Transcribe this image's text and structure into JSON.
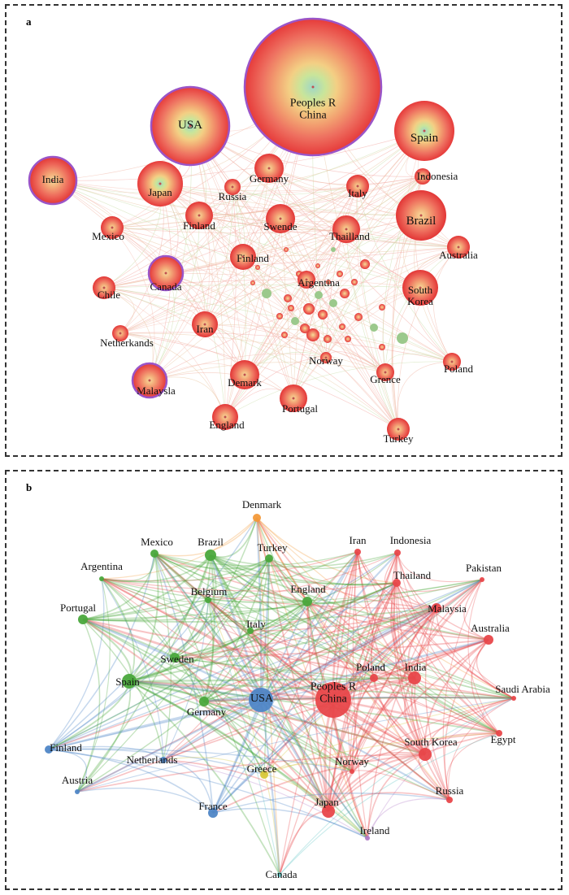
{
  "panels": [
    {
      "id": "a",
      "letter": "a",
      "nodes": [
        {
          "label": "Peoples R China",
          "label_lines": [
            "Peoples R",
            "China"
          ],
          "weight": 1.0,
          "ring": true,
          "core": "green"
        },
        {
          "label": "USA",
          "weight": 0.6,
          "ring": true,
          "core": "green"
        },
        {
          "label": "Spain",
          "weight": 0.48,
          "ring": false,
          "core": "green"
        },
        {
          "label": "India",
          "weight": 0.36,
          "ring": true,
          "core": "none"
        },
        {
          "label": "Japan",
          "weight": 0.34,
          "ring": false,
          "core": "green"
        },
        {
          "label": "Brazil",
          "weight": 0.38,
          "ring": false,
          "core": "none"
        },
        {
          "label": "Germany",
          "weight": 0.27,
          "ring": false,
          "core": "none"
        },
        {
          "label": "Russia",
          "weight": 0.14,
          "ring": false,
          "core": "none"
        },
        {
          "label": "Italy",
          "weight": 0.2,
          "ring": false,
          "core": "none"
        },
        {
          "label": "Indonesia",
          "weight": 0.14,
          "ring": false,
          "core": "none"
        },
        {
          "label": "Mexico",
          "weight": 0.2,
          "ring": false,
          "core": "none"
        },
        {
          "label": "Finland",
          "weight": 0.26,
          "ring": false,
          "core": "none"
        },
        {
          "label": "Swende",
          "weight": 0.27,
          "ring": false,
          "core": "none"
        },
        {
          "label": "Thailland",
          "weight": 0.25,
          "ring": false,
          "core": "none"
        },
        {
          "label": "Australia",
          "weight": 0.2,
          "ring": false,
          "core": "none"
        },
        {
          "label": "Finland",
          "weight": 0.25,
          "ring": false,
          "core": "none"
        },
        {
          "label": "Canada",
          "weight": 0.28,
          "ring": true,
          "core": "none"
        },
        {
          "label": "Argentina",
          "weight": 0.17,
          "ring": false,
          "core": "none"
        },
        {
          "label": "Chile",
          "weight": 0.2,
          "ring": false,
          "core": "none"
        },
        {
          "label": "South Korea",
          "label_lines": [
            "South",
            "Korea"
          ],
          "weight": 0.32,
          "ring": false,
          "core": "none"
        },
        {
          "label": "Iran",
          "weight": 0.23,
          "ring": false,
          "core": "none"
        },
        {
          "label": "Netherkands",
          "weight": 0.14,
          "ring": false,
          "core": "none"
        },
        {
          "label": "Norway",
          "weight": 0.1,
          "ring": false,
          "core": "none"
        },
        {
          "label": "Grence",
          "weight": 0.17,
          "ring": false,
          "core": "none"
        },
        {
          "label": "Poland",
          "weight": 0.16,
          "ring": false,
          "core": "none"
        },
        {
          "label": "Demark",
          "weight": 0.27,
          "ring": false,
          "core": "none"
        },
        {
          "label": "Malaysla",
          "weight": 0.3,
          "ring": true,
          "core": "none"
        },
        {
          "label": "Portugal",
          "weight": 0.26,
          "ring": false,
          "core": "none"
        },
        {
          "label": "England",
          "weight": 0.25,
          "ring": false,
          "core": "none"
        },
        {
          "label": "Turkey",
          "weight": 0.2,
          "ring": false,
          "core": "none"
        }
      ]
    },
    {
      "id": "b",
      "letter": "b",
      "colors": {
        "green": "#4aa83c",
        "red": "#e8474a",
        "blue": "#4f86c6",
        "orange": "#f39a3a",
        "yellow": "#d8c83a",
        "purple": "#b07cc6",
        "teal": "#5ec4c4"
      },
      "nodes": [
        {
          "label": "Denmark",
          "cluster": "orange",
          "weight": 0.3
        },
        {
          "label": "Iran",
          "cluster": "red",
          "weight": 0.25
        },
        {
          "label": "Indonesia",
          "cluster": "red",
          "weight": 0.18
        },
        {
          "label": "Mexico",
          "cluster": "green",
          "weight": 0.3
        },
        {
          "label": "Brazil",
          "cluster": "green",
          "weight": 0.55
        },
        {
          "label": "Turkey",
          "cluster": "green",
          "weight": 0.3
        },
        {
          "label": "Pakistan",
          "cluster": "red",
          "weight": 0.15
        },
        {
          "label": "Argentina",
          "cluster": "green",
          "weight": 0.18
        },
        {
          "label": "Thailand",
          "cluster": "red",
          "weight": 0.3
        },
        {
          "label": "Belgium",
          "cluster": "green",
          "weight": 0.18
        },
        {
          "label": "England",
          "cluster": "green",
          "weight": 0.35
        },
        {
          "label": "Malaysia",
          "cluster": "red",
          "weight": 0.38
        },
        {
          "label": "Portugal",
          "cluster": "green",
          "weight": 0.45
        },
        {
          "label": "Australia",
          "cluster": "red",
          "weight": 0.38
        },
        {
          "label": "Italy",
          "cluster": "green",
          "weight": 0.28
        },
        {
          "label": "Sweden",
          "cluster": "green",
          "weight": 0.35
        },
        {
          "label": "Poland",
          "cluster": "red",
          "weight": 0.22
        },
        {
          "label": "India",
          "cluster": "red",
          "weight": 0.55
        },
        {
          "label": "Spain",
          "cluster": "green",
          "weight": 0.6
        },
        {
          "label": "Saudi Arabia",
          "cluster": "red",
          "weight": 0.15
        },
        {
          "label": "Peoples R China",
          "label_lines": [
            "Peoples R",
            "China"
          ],
          "cluster": "red",
          "weight": 1.0
        },
        {
          "label": "USA",
          "cluster": "blue",
          "weight": 0.85
        },
        {
          "label": "Germany",
          "cluster": "green",
          "weight": 0.45
        },
        {
          "label": "Egypt",
          "cluster": "red",
          "weight": 0.2
        },
        {
          "label": "South Korea",
          "cluster": "red",
          "weight": 0.5
        },
        {
          "label": "Finland",
          "cluster": "blue",
          "weight": 0.35
        },
        {
          "label": "Netherlands",
          "cluster": "blue",
          "weight": 0.2
        },
        {
          "label": "Greece",
          "cluster": "yellow",
          "weight": 0.25
        },
        {
          "label": "Norway",
          "cluster": "red",
          "weight": 0.22
        },
        {
          "label": "Austria",
          "cluster": "blue",
          "weight": 0.18
        },
        {
          "label": "Russia",
          "cluster": "red",
          "weight": 0.2
        },
        {
          "label": "France",
          "cluster": "blue",
          "weight": 0.4
        },
        {
          "label": "Japan",
          "cluster": "red",
          "weight": 0.55
        },
        {
          "label": "Ireland",
          "cluster": "purple",
          "weight": 0.22
        },
        {
          "label": "Canada",
          "cluster": "teal",
          "weight": 0.22
        }
      ]
    }
  ]
}
